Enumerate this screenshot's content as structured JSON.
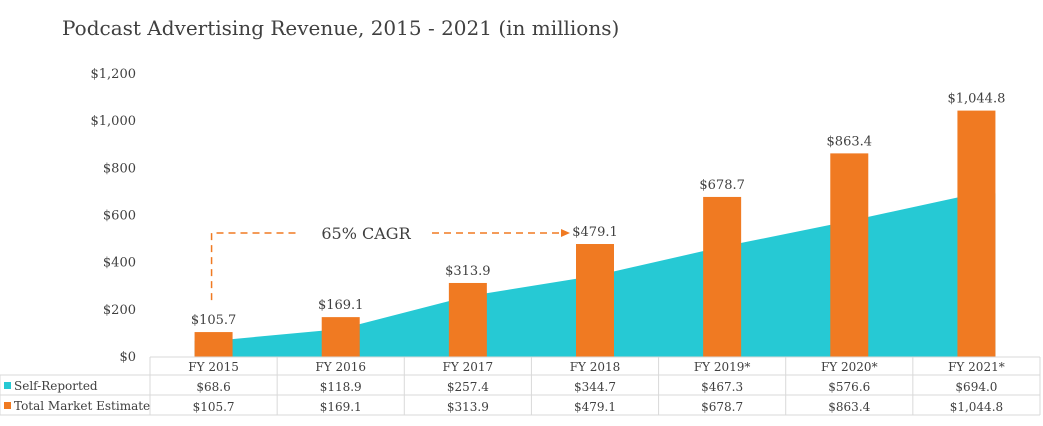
{
  "chart_data": {
    "type": "bar",
    "title": "Podcast Advertising Revenue, 2015 - 2021 (in millions)",
    "categories": [
      "FY 2015",
      "FY 2016",
      "FY 2017",
      "FY 2018",
      "FY 2019*",
      "FY 2020*",
      "FY 2021*"
    ],
    "series": [
      {
        "name": "Self-Reported",
        "kind": "area",
        "color": "#26C9D4",
        "values": [
          68.6,
          118.9,
          257.4,
          344.7,
          467.3,
          576.6,
          694.0
        ],
        "labels": [
          "$68.6",
          "$118.9",
          "$257.4",
          "$344.7",
          "$467.3",
          "$576.6",
          "$694.0"
        ]
      },
      {
        "name": "Total Market Estimate",
        "kind": "bar",
        "color": "#F07A22",
        "values": [
          105.7,
          169.1,
          313.9,
          479.1,
          678.7,
          863.4,
          1044.8
        ],
        "labels": [
          "$105.7",
          "$169.1",
          "$313.9",
          "$479.1",
          "$678.7",
          "$863.4",
          "$1,044.8"
        ]
      }
    ],
    "yticks": [
      0,
      200,
      400,
      600,
      800,
      1000,
      1200
    ],
    "ytick_labels": [
      "$0",
      "$200",
      "$400",
      "$600",
      "$800",
      "$1,000",
      "$1,200"
    ],
    "ylim": [
      0,
      1200
    ],
    "grid": false,
    "legend": "table-left",
    "annotation": {
      "text": "65% CAGR",
      "from": "FY 2015",
      "to": "FY 2018"
    }
  }
}
